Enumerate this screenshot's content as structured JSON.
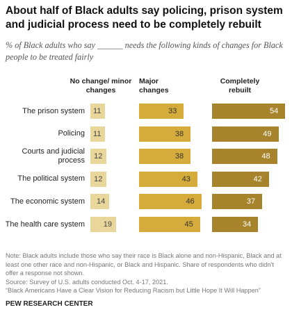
{
  "chart_data": {
    "type": "bar",
    "title": "About half of Black adults say policing, prison system and judicial process need to be completely rebuilt",
    "subtitle": "% of Black adults who say ______ needs the following kinds of changes for Black people to be treated fairly",
    "categories": [
      "The prison system",
      "Policing",
      "Courts and judicial process",
      "The political system",
      "The economic system",
      "The health care system"
    ],
    "series": [
      {
        "name": "No change/ minor changes",
        "color": "#e9d69b",
        "values": [
          11,
          11,
          12,
          12,
          14,
          19
        ]
      },
      {
        "name": "Major changes",
        "color": "#d5ab3b",
        "values": [
          33,
          38,
          38,
          43,
          46,
          45
        ]
      },
      {
        "name": "Completely rebuilt",
        "color": "#a7832b",
        "values": [
          54,
          49,
          48,
          42,
          37,
          34
        ]
      }
    ],
    "note": "Note: Black adults include those who say their race is Black alone and non-Hispanic, Black and at least one other race and non-Hispanic, or Black and Hispanic. Share of respondents who didn’t offer a response not shown.",
    "source": "Source: Survey of U.S. adults conducted Oct. 4-17, 2021.",
    "report": "“Black Americans Have a Clear Vision for Reducing Racism but Little Hope It Will Happen”",
    "footer": "PEW RESEARCH CENTER"
  }
}
